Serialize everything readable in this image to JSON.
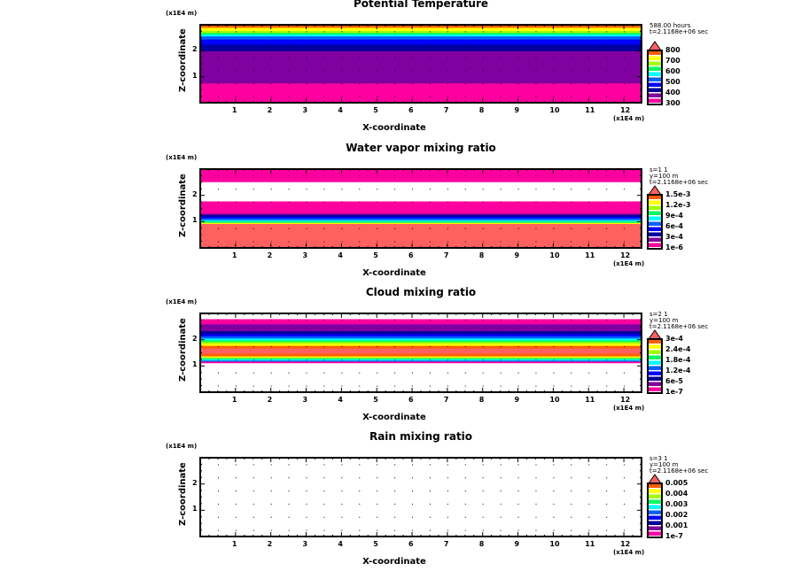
{
  "palette": [
    "#ff00a0",
    "#8000a0",
    "#0000a0",
    "#0000ff",
    "#0060ff",
    "#00ffff",
    "#00ff60",
    "#a0ff00",
    "#ffff00",
    "#ff6000",
    "#ff6060"
  ],
  "chart_data": [
    {
      "type": "heatmap",
      "title": "Potential Temperature",
      "ylabel": "Z-coordinate",
      "xlabel": "X-coordinate",
      "yunit": "(x1E4 m)",
      "xunit": "(x1E4 m)",
      "xlim": [
        0,
        12.5
      ],
      "ylim": [
        0,
        3
      ],
      "xticks": [
        "1",
        "2",
        "3",
        "4",
        "5",
        "6",
        "7",
        "8",
        "9",
        "10",
        "11",
        "12"
      ],
      "yticks": [
        "1",
        "2"
      ],
      "info": [
        "588.00 hours",
        "t=2.1168e+06 sec"
      ],
      "colorbar_labels": [
        "300",
        "400",
        "500",
        "600",
        "700",
        "800"
      ],
      "bands": [
        [
          0,
          0.76,
          0
        ],
        [
          0.76,
          2.0,
          1
        ],
        [
          2.0,
          2.25,
          2
        ],
        [
          2.25,
          2.45,
          3
        ],
        [
          2.45,
          2.57,
          4
        ],
        [
          2.57,
          2.64,
          5
        ],
        [
          2.64,
          2.7,
          6
        ],
        [
          2.7,
          2.78,
          7
        ],
        [
          2.78,
          2.9,
          8
        ],
        [
          2.9,
          3.0,
          9
        ]
      ]
    },
    {
      "type": "heatmap",
      "title": "Water vapor mixing ratio",
      "ylabel": "Z-coordinate",
      "xlabel": "X-coordinate",
      "yunit": "(x1E4 m)",
      "xunit": "(x1E4 m)",
      "xlim": [
        0,
        12.5
      ],
      "ylim": [
        0,
        3
      ],
      "xticks": [
        "1",
        "2",
        "3",
        "4",
        "5",
        "6",
        "7",
        "8",
        "9",
        "10",
        "11",
        "12"
      ],
      "yticks": [
        "1",
        "2"
      ],
      "info": [
        "s=1 1",
        "y=100 m",
        "t=2.1168e+06 sec"
      ],
      "colorbar_labels": [
        "1e-6",
        "3e-4",
        "6e-4",
        "9e-4",
        "1.2e-3",
        "1.5e-3"
      ],
      "bands": [
        [
          0,
          0.93,
          10
        ],
        [
          0.93,
          0.97,
          8
        ],
        [
          0.97,
          1.02,
          6
        ],
        [
          1.02,
          1.07,
          5
        ],
        [
          1.07,
          1.14,
          4
        ],
        [
          1.14,
          1.2,
          3
        ],
        [
          1.2,
          1.27,
          2
        ],
        [
          1.27,
          1.32,
          1
        ],
        [
          1.32,
          1.77,
          0
        ],
        [
          2.52,
          3.0,
          0
        ]
      ]
    },
    {
      "type": "heatmap",
      "title": "Cloud mixing ratio",
      "ylabel": "Z-coordinate",
      "xlabel": "X-coordinate",
      "yunit": "(x1E4 m)",
      "xunit": "(x1E4 m)",
      "xlim": [
        0,
        12.5
      ],
      "ylim": [
        0,
        3
      ],
      "xticks": [
        "1",
        "2",
        "3",
        "4",
        "5",
        "6",
        "7",
        "8",
        "9",
        "10",
        "11",
        "12"
      ],
      "yticks": [
        "1",
        "2"
      ],
      "info": [
        "s=2 1",
        "y=100 m",
        "t=2.1168e+06 sec"
      ],
      "colorbar_labels": [
        "1e-7",
        "6e-5",
        "1.2e-4",
        "1.8e-4",
        "2.4e-4",
        "3e-4"
      ],
      "bands": [
        [
          1.12,
          1.18,
          0
        ],
        [
          1.18,
          1.22,
          4
        ],
        [
          1.22,
          1.27,
          5
        ],
        [
          1.27,
          1.32,
          6
        ],
        [
          1.32,
          1.38,
          8
        ],
        [
          1.38,
          1.48,
          9
        ],
        [
          1.48,
          1.68,
          10
        ],
        [
          1.68,
          1.78,
          9
        ],
        [
          1.78,
          1.86,
          8
        ],
        [
          1.86,
          1.93,
          7
        ],
        [
          1.93,
          1.99,
          6
        ],
        [
          1.99,
          2.06,
          5
        ],
        [
          2.06,
          2.14,
          4
        ],
        [
          2.14,
          2.22,
          3
        ],
        [
          2.22,
          2.34,
          2
        ],
        [
          2.34,
          2.6,
          1
        ],
        [
          2.6,
          2.78,
          0
        ]
      ]
    },
    {
      "type": "heatmap",
      "title": "Rain mixing ratio",
      "ylabel": "Z-coordinate",
      "xlabel": "X-coordinate",
      "yunit": "(x1E4 m)",
      "xunit": "(x1E4 m)",
      "xlim": [
        0,
        12.5
      ],
      "ylim": [
        0,
        3
      ],
      "xticks": [
        "1",
        "2",
        "3",
        "4",
        "5",
        "6",
        "7",
        "8",
        "9",
        "10",
        "11",
        "12"
      ],
      "yticks": [
        "1",
        "2"
      ],
      "info": [
        "s=3 1",
        "y=100 m",
        "t=2.1168e+06 sec"
      ],
      "colorbar_labels": [
        "1e-7",
        "0.001",
        "0.002",
        "0.003",
        "0.004",
        "0.005"
      ],
      "bands": []
    }
  ]
}
